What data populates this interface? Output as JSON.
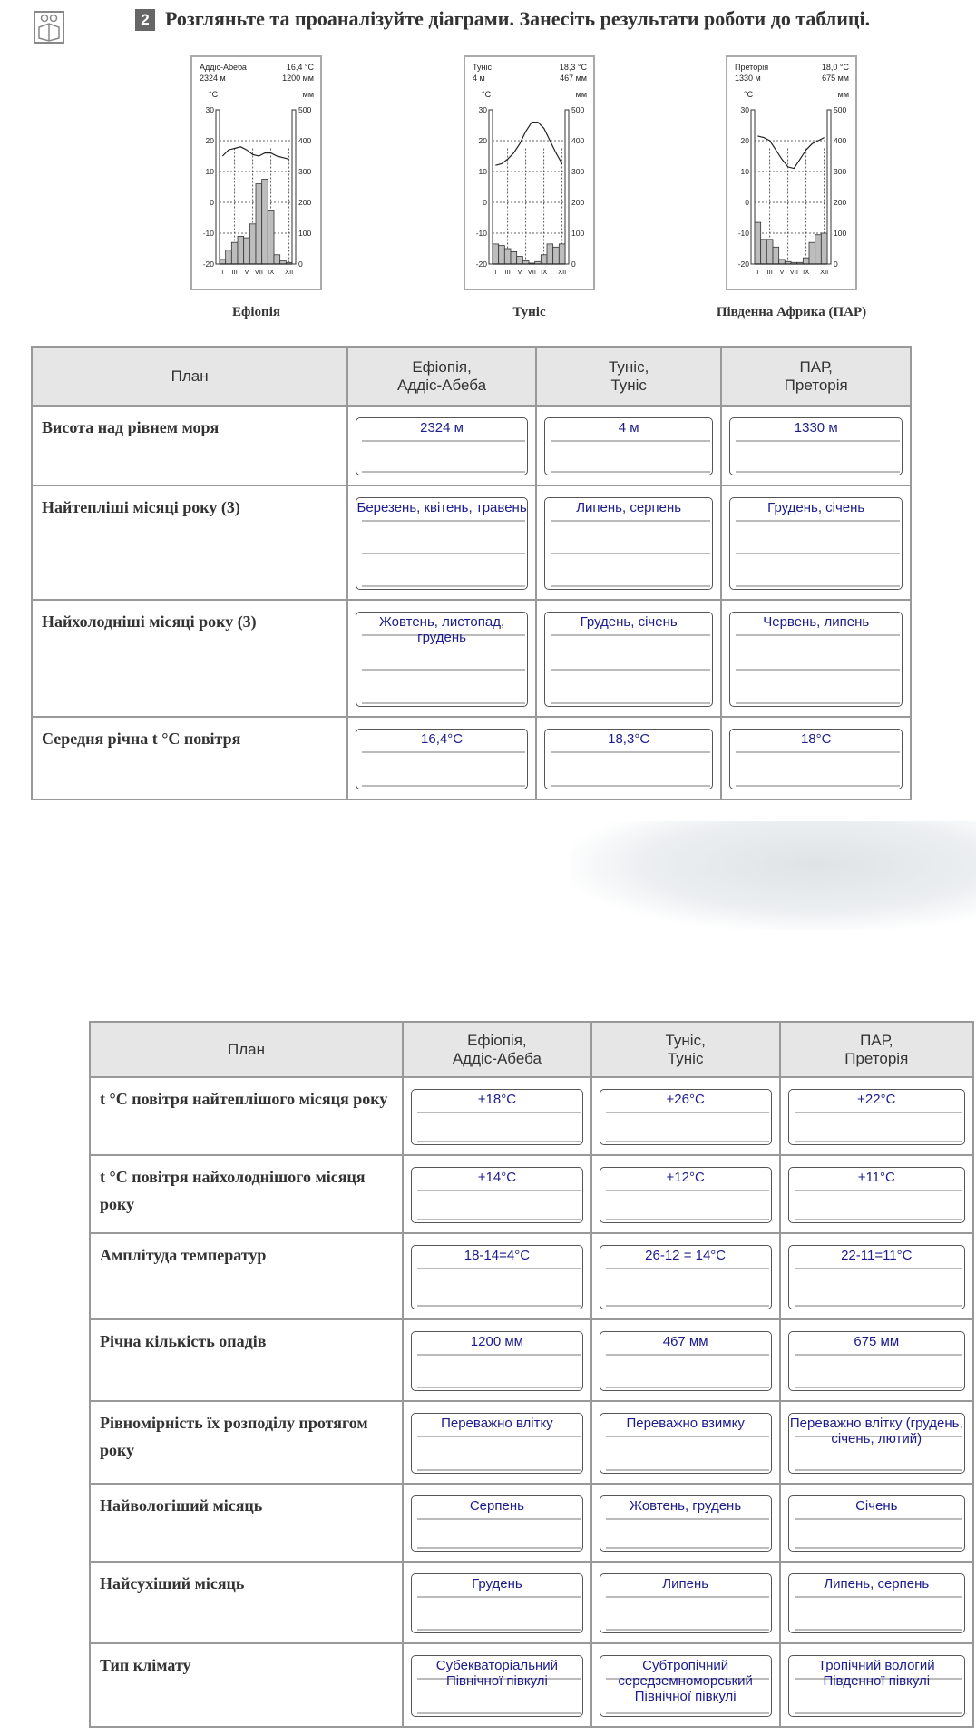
{
  "task": {
    "number": "2",
    "text": "Розгляньте та проаналізуйте діаграми. Занесіть результати роботи до таблиці.",
    "icon": "reading-children-icon"
  },
  "chart_data": [
    {
      "type": "bar",
      "caption": "Ефіопія",
      "city": "Аддіс-Абеба",
      "altitude": "2324 м",
      "mean_temp": "16,4 °С",
      "annual_precip": "1200 мм",
      "temp_unit": "°С",
      "precip_unit": "мм",
      "temp_ylim": [
        -20,
        30
      ],
      "precip_ylim": [
        0,
        500
      ],
      "temp_ticks": [
        "30",
        "20",
        "10",
        "0",
        "-10",
        "-20"
      ],
      "precip_ticks": [
        "500",
        "400",
        "300",
        "200",
        "100",
        "0"
      ],
      "month_labels": [
        "I",
        "III",
        "V",
        "VII",
        "IX",
        "XII"
      ],
      "temperature": [
        15,
        17,
        17.5,
        18,
        17,
        15.5,
        15,
        16,
        16,
        15,
        14.5,
        14
      ],
      "precipitation": [
        15,
        45,
        70,
        90,
        85,
        130,
        260,
        275,
        175,
        30,
        10,
        5
      ]
    },
    {
      "type": "bar",
      "caption": "Туніс",
      "city": "Туніс",
      "altitude": "4 м",
      "mean_temp": "18,3 °С",
      "annual_precip": "467 мм",
      "temp_unit": "°С",
      "precip_unit": "мм",
      "temp_ylim": [
        -20,
        30
      ],
      "precip_ylim": [
        0,
        500
      ],
      "temp_ticks": [
        "30",
        "20",
        "10",
        "0",
        "-10",
        "-20"
      ],
      "precip_ticks": [
        "500",
        "400",
        "300",
        "200",
        "100",
        "0"
      ],
      "month_labels": [
        "I",
        "III",
        "V",
        "VII",
        "IX",
        "XII"
      ],
      "temperature": [
        12,
        12.5,
        14,
        16,
        19,
        23,
        26,
        26,
        24,
        20,
        16,
        12.5
      ],
      "precipitation": [
        65,
        60,
        50,
        40,
        25,
        10,
        3,
        8,
        30,
        65,
        55,
        65
      ]
    },
    {
      "type": "bar",
      "caption": "Південна Африка (ПАР)",
      "city": "Преторія",
      "altitude": "1330 м",
      "mean_temp": "18,0 °С",
      "annual_precip": "675 мм",
      "temp_unit": "°С",
      "precip_unit": "мм",
      "temp_ylim": [
        -20,
        30
      ],
      "precip_ylim": [
        0,
        500
      ],
      "temp_ticks": [
        "30",
        "20",
        "10",
        "0",
        "-10",
        "-20"
      ],
      "precip_ticks": [
        "500",
        "400",
        "300",
        "200",
        "100",
        "0"
      ],
      "month_labels": [
        "I",
        "III",
        "V",
        "VII",
        "IX",
        "XII"
      ],
      "temperature": [
        21.5,
        21,
        20,
        17,
        14,
        11.5,
        11,
        14,
        17,
        19,
        20,
        21
      ],
      "precipitation": [
        135,
        80,
        80,
        55,
        15,
        8,
        5,
        5,
        20,
        70,
        95,
        100
      ]
    }
  ],
  "table1": {
    "headers": [
      "План",
      "Ефіопія,\nАддіс-Абеба",
      "Туніс,\nТуніс",
      "ПАР,\nПреторія"
    ],
    "rows": [
      {
        "plan": "Висота над рівнем моря",
        "answers": [
          "2324 м",
          "4 м",
          "1330 м"
        ]
      },
      {
        "plan": "Найтепліші місяці року (3)",
        "answers": [
          "Березень, квітень, травень",
          "Липень, серпень",
          "Грудень, січень"
        ]
      },
      {
        "plan": "Найхолодніші місяці року (3)",
        "answers": [
          "Жовтень, листопад, грудень",
          "Грудень, січень",
          "Червень, липень"
        ]
      },
      {
        "plan": "Середня річна t °С повітря",
        "answers": [
          "16,4°C",
          "18,3°C",
          "18°C"
        ]
      }
    ]
  },
  "table2": {
    "headers": [
      "План",
      "Ефіопія,\nАддіс-Абеба",
      "Туніс,\nТуніс",
      "ПАР,\nПреторія"
    ],
    "rows": [
      {
        "plan": "t °С повітря найтеплішого місяця року",
        "answers": [
          "+18°C",
          "+26°C",
          "+22°C"
        ]
      },
      {
        "plan": "t °С повітря найхолоднішого місяця року",
        "answers": [
          "+14°C",
          "+12°C",
          "+11°C"
        ]
      },
      {
        "plan": "Амплітуда температур",
        "answers": [
          "18-14=4°C",
          "26-12 = 14°C",
          "22-11=11°C"
        ]
      },
      {
        "plan": "Річна кількість опадів",
        "answers": [
          "1200 мм",
          "467 мм",
          "675 мм"
        ]
      },
      {
        "plan": "Рівномірність їх розподілу протягом року",
        "answers": [
          "Переважно влітку",
          "Переважно взимку",
          "Переважно влітку (грудень, січень, лютий)"
        ]
      },
      {
        "plan": "Найвологіший місяць",
        "answers": [
          "Серпень",
          "Жовтень, грудень",
          "Січень"
        ]
      },
      {
        "plan": "Найсухіший місяць",
        "answers": [
          "Грудень",
          "Липень",
          "Липень, серпень"
        ]
      },
      {
        "plan": "Тип клімату",
        "answers": [
          "Субекваторіальний Північної півкулі",
          "Субтропічний середземноморський Північної півкулі",
          "Тропічний вологий Південної півкулі"
        ]
      }
    ]
  },
  "colors": {
    "answer_text": "#1c1c8c",
    "header_bg": "#e6e6e6",
    "bars": "#bdbdbd"
  }
}
